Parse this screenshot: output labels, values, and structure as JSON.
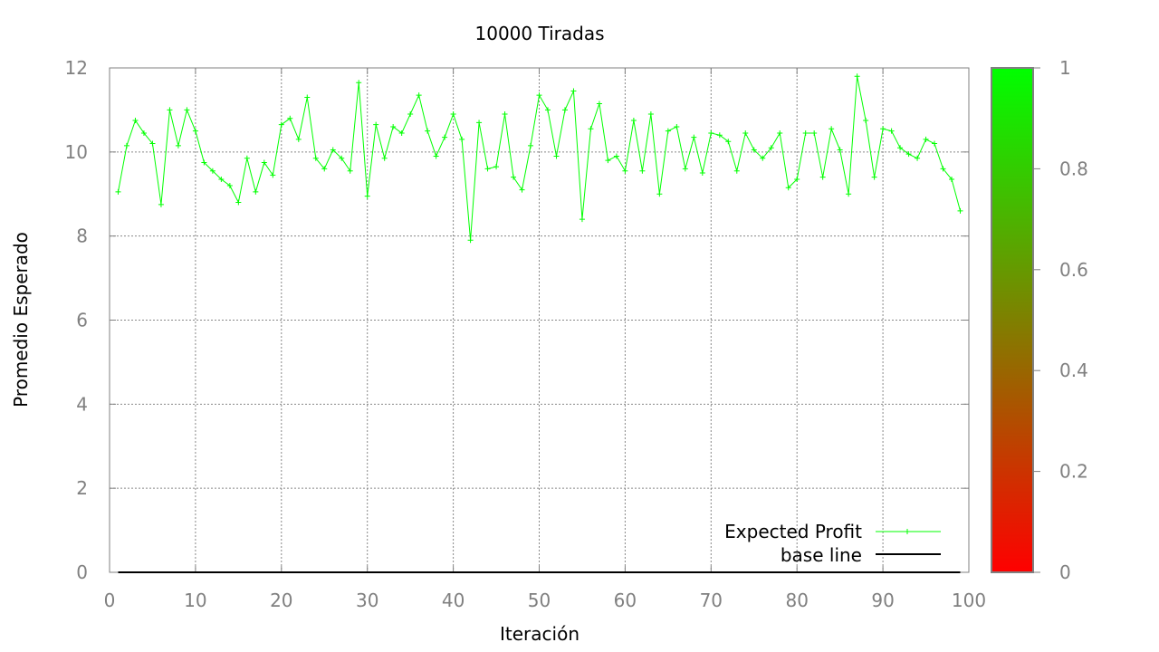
{
  "chart_data": {
    "type": "line",
    "title": "10000 Tiradas",
    "xlabel": "Iteración",
    "ylabel": "Promedio Esperado",
    "xlim": [
      0,
      100
    ],
    "ylim": [
      0,
      12
    ],
    "x_ticks": [
      "0",
      "10",
      "20",
      "30",
      "40",
      "50",
      "60",
      "70",
      "80",
      "90",
      "100"
    ],
    "y_ticks": [
      "0",
      "2",
      "4",
      "6",
      "8",
      "10",
      "12"
    ],
    "grid": true,
    "legend_position": "bottom-right",
    "series": [
      {
        "name": "Expected Profit",
        "color": "#00ff00",
        "marker": "plus",
        "x": [
          1,
          2,
          3,
          4,
          5,
          6,
          7,
          8,
          9,
          10,
          11,
          12,
          13,
          14,
          15,
          16,
          17,
          18,
          19,
          20,
          21,
          22,
          23,
          24,
          25,
          26,
          27,
          28,
          29,
          30,
          31,
          32,
          33,
          34,
          35,
          36,
          37,
          38,
          39,
          40,
          41,
          42,
          43,
          44,
          45,
          46,
          47,
          48,
          49,
          50,
          51,
          52,
          53,
          54,
          55,
          56,
          57,
          58,
          59,
          60,
          61,
          62,
          63,
          64,
          65,
          66,
          67,
          68,
          69,
          70,
          71,
          72,
          73,
          74,
          75,
          76,
          77,
          78,
          79,
          80,
          81,
          82,
          83,
          84,
          85,
          86,
          87,
          88,
          89,
          90,
          91,
          92,
          93,
          94,
          95,
          96,
          97,
          98,
          99
        ],
        "y": [
          9.05,
          10.15,
          10.75,
          10.45,
          10.2,
          8.75,
          11.0,
          10.15,
          11.0,
          10.5,
          9.75,
          9.55,
          9.35,
          9.2,
          8.8,
          9.85,
          9.05,
          9.75,
          9.45,
          10.65,
          10.8,
          10.3,
          11.3,
          9.85,
          9.6,
          10.05,
          9.85,
          9.55,
          11.65,
          8.95,
          10.65,
          9.85,
          10.6,
          10.45,
          10.9,
          11.35,
          10.5,
          9.9,
          10.35,
          10.9,
          10.3,
          7.9,
          10.7,
          9.6,
          9.65,
          10.9,
          9.4,
          9.1,
          10.15,
          11.35,
          11.0,
          9.9,
          11.0,
          11.45,
          8.4,
          10.55,
          11.15,
          9.8,
          9.9,
          9.55,
          10.75,
          9.55,
          10.9,
          9.0,
          10.5,
          10.6,
          9.6,
          10.35,
          9.5,
          10.45,
          10.4,
          10.25,
          9.55,
          10.45,
          10.05,
          9.85,
          10.1,
          10.45,
          9.15,
          9.35,
          10.45,
          10.45,
          9.4,
          10.55,
          10.05,
          9.0,
          11.8,
          10.75,
          9.4,
          10.55,
          10.5,
          10.1,
          9.95,
          9.85,
          10.3,
          10.2,
          9.6,
          9.35,
          8.6
        ]
      },
      {
        "name": "base line",
        "color": "#000000",
        "marker": "none",
        "x": [
          1,
          99
        ],
        "y": [
          0,
          0
        ]
      }
    ],
    "colorbar": {
      "ticks": [
        "0",
        "0.2",
        "0.4",
        "0.6",
        "0.8",
        "1"
      ],
      "range": [
        0,
        1
      ],
      "color_low": "#ff0000",
      "color_high": "#00ff00"
    }
  }
}
